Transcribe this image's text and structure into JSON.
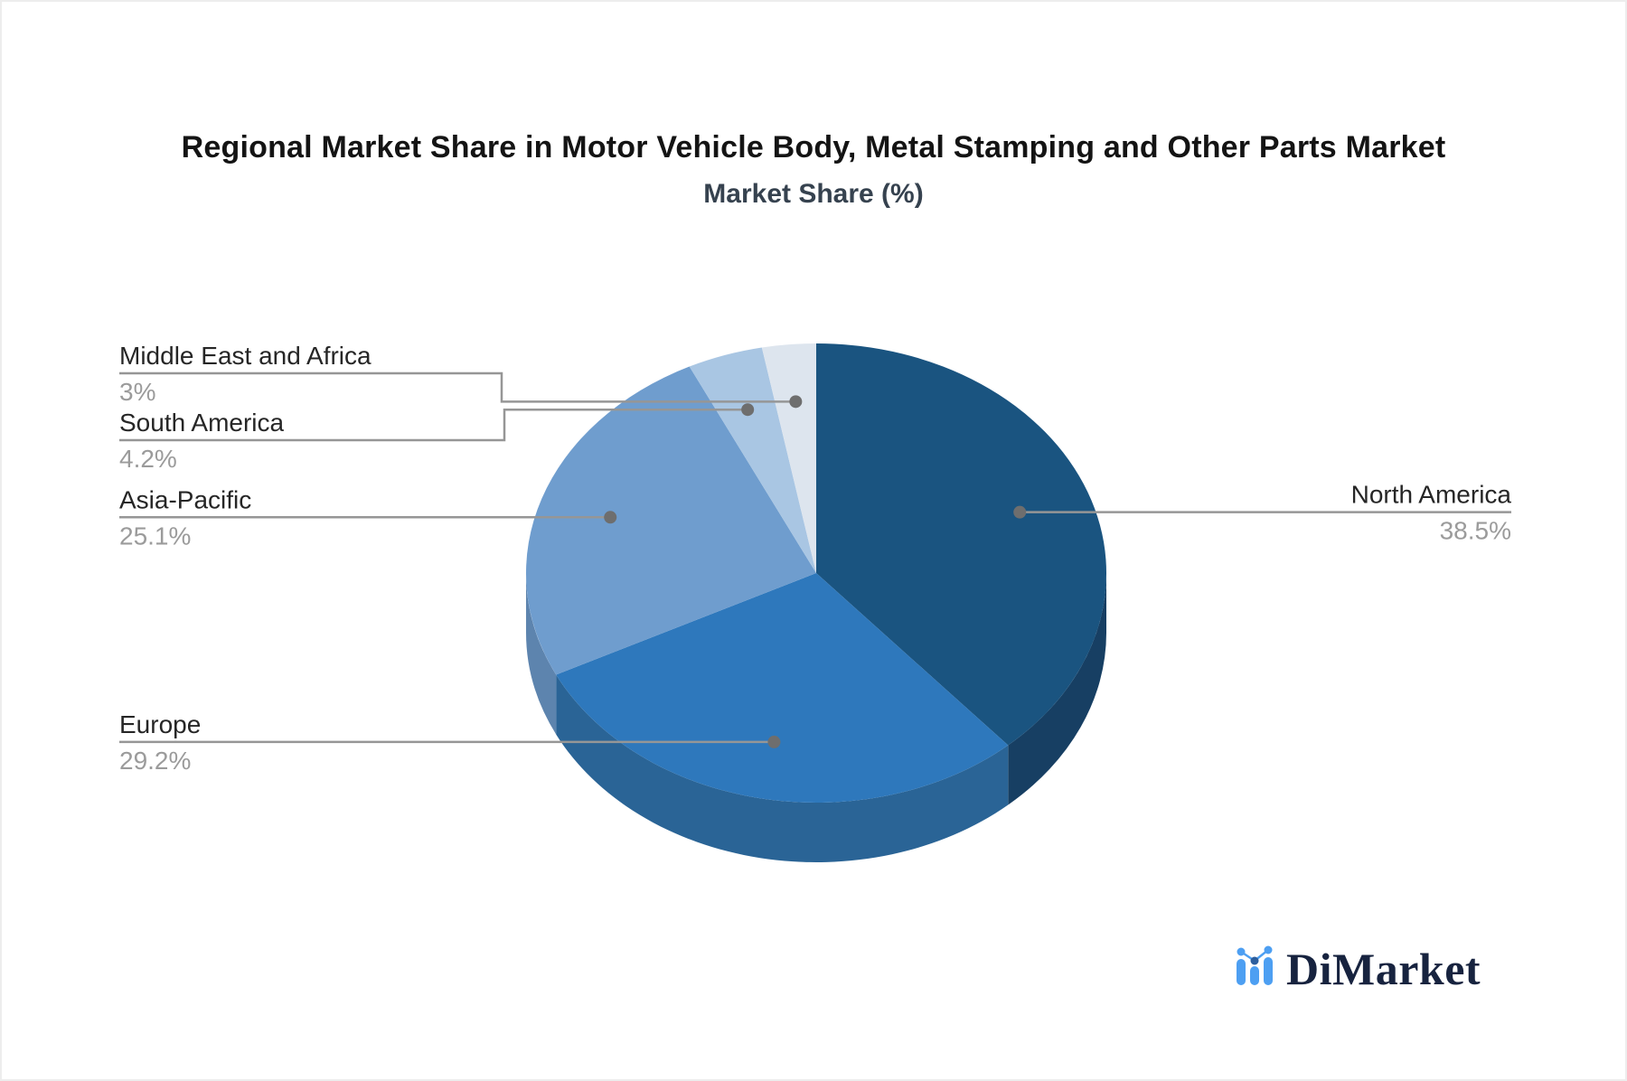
{
  "title": "Regional Market Share in Motor Vehicle Body, Metal Stamping and Other Parts Market",
  "subtitle": "Market Share (%)",
  "logo": {
    "text": "DiMarket",
    "accent": "#4d9ff2",
    "accent_dark": "#2d5f9e",
    "text_color": "#17233f"
  },
  "chart_data": {
    "type": "pie",
    "variant": "pie-3d",
    "title": "Regional Market Share in Motor Vehicle Body, Metal Stamping and Other Parts Market",
    "subtitle": "Market Share (%)",
    "unit": "%",
    "start_angle_deg": 0,
    "direction": "clockwise",
    "legend_position": "callout-labels",
    "categories": [
      "North America",
      "Europe",
      "Asia-Pacific",
      "South America",
      "Middle East and Africa"
    ],
    "values": [
      38.5,
      29.2,
      25.1,
      4.2,
      3
    ],
    "slices": [
      {
        "label": "North America",
        "value": 38.5,
        "display": "38.5%",
        "color": "#1a5480",
        "side_color": "#173f63"
      },
      {
        "label": "Europe",
        "value": 29.2,
        "display": "29.2%",
        "color": "#2e78bc",
        "side_color": "#2a6496"
      },
      {
        "label": "Asia-Pacific",
        "value": 25.1,
        "display": "25.1%",
        "color": "#6f9dce",
        "side_color": "#5d84ae"
      },
      {
        "label": "South America",
        "value": 4.2,
        "display": "4.2%",
        "color": "#a9c6e3",
        "side_color": "#8fb3d6"
      },
      {
        "label": "Middle East and Africa",
        "value": 3,
        "display": "3%",
        "color": "#dde5ee",
        "side_color": "#c2cfdd"
      }
    ],
    "callout_line_color": "#969696",
    "callout_dot_color": "#6e6e6e",
    "label_color": "#262626",
    "value_color": "#9b9b9b"
  }
}
